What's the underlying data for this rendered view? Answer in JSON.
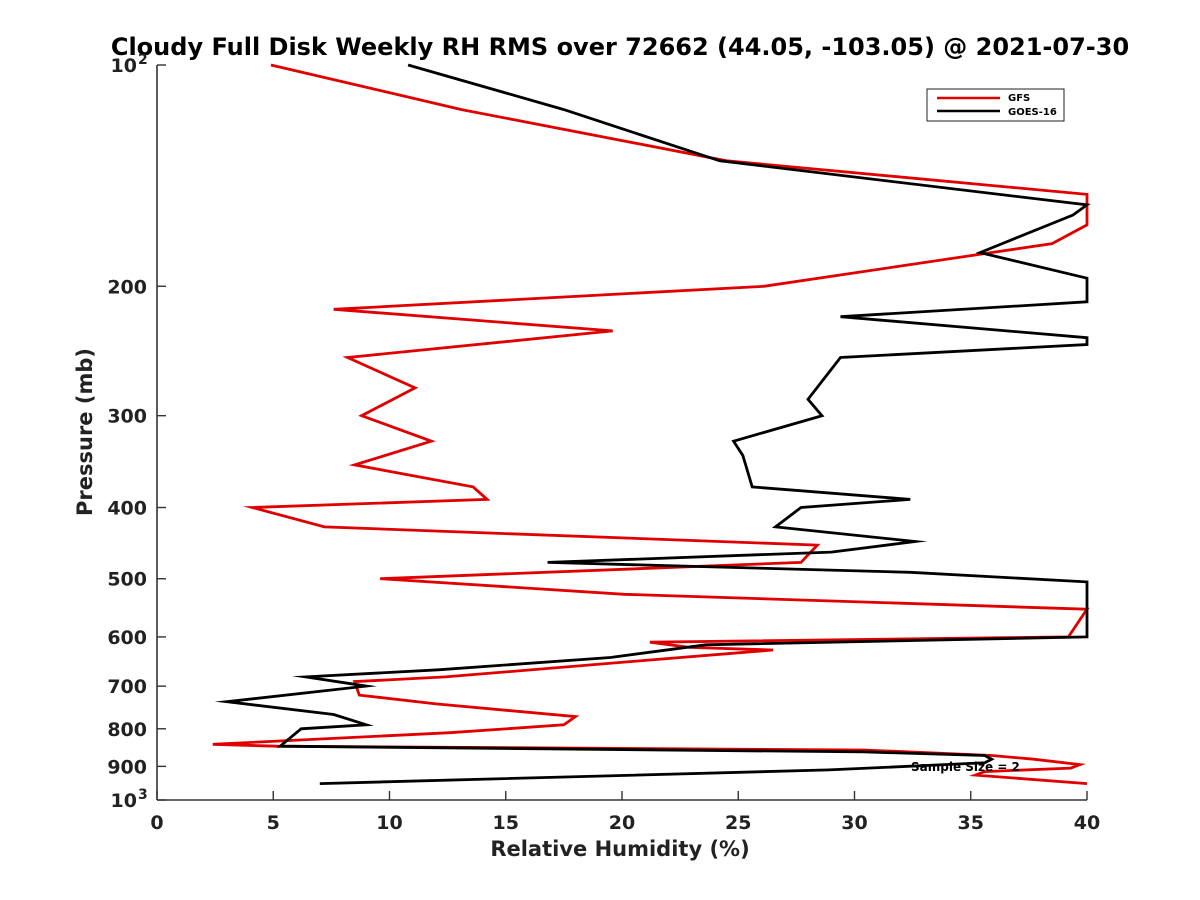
{
  "chart_data": {
    "type": "line",
    "title": "Cloudy Full Disk Weekly RH RMS over 72662 (44.05, -103.05) @ 2021-07-30",
    "xlabel": "Relative Humidity (%)",
    "ylabel": "Pressure (mb)",
    "xlim": [
      0,
      40
    ],
    "ylim": [
      100,
      1000
    ],
    "y_scale": "log",
    "y_reversed": true,
    "grid": false,
    "legend_placement": "top-right",
    "x_ticks": [
      "0",
      "5",
      "10",
      "15",
      "20",
      "25",
      "30",
      "35",
      "40"
    ],
    "y_ticks": [
      {
        "value": 100,
        "base": "10",
        "exp": "2"
      },
      {
        "value": 200,
        "label": "200"
      },
      {
        "value": 300,
        "label": "300"
      },
      {
        "value": 400,
        "label": "400"
      },
      {
        "value": 500,
        "label": "500"
      },
      {
        "value": 600,
        "label": "600"
      },
      {
        "value": 700,
        "label": "700"
      },
      {
        "value": 800,
        "label": "800"
      },
      {
        "value": 900,
        "label": "900"
      },
      {
        "value": 1000,
        "base": "10",
        "exp": "3"
      }
    ],
    "annotation": "Sample Size = 2",
    "series": [
      {
        "name": "GFS",
        "color": "#e00000",
        "points": [
          [
            4.9,
            100
          ],
          [
            13.1,
            115
          ],
          [
            24.5,
            135
          ],
          [
            40.0,
            150
          ],
          [
            40.0,
            165
          ],
          [
            38.5,
            175
          ],
          [
            26.1,
            200
          ],
          [
            7.6,
            215
          ],
          [
            19.6,
            230
          ],
          [
            8.2,
            250
          ],
          [
            11.1,
            275
          ],
          [
            8.8,
            300
          ],
          [
            11.8,
            325
          ],
          [
            8.5,
            350
          ],
          [
            13.6,
            375
          ],
          [
            14.2,
            390
          ],
          [
            4.1,
            400
          ],
          [
            7.2,
            425
          ],
          [
            28.4,
            450
          ],
          [
            27.7,
            475
          ],
          [
            9.6,
            500
          ],
          [
            20.1,
            525
          ],
          [
            40.0,
            550
          ],
          [
            39.2,
            600
          ],
          [
            21.2,
            610
          ],
          [
            22.9,
            620
          ],
          [
            26.5,
            625
          ],
          [
            21.2,
            645
          ],
          [
            12.4,
            680
          ],
          [
            8.5,
            690
          ],
          [
            8.7,
            720
          ],
          [
            12.0,
            740
          ],
          [
            18.0,
            770
          ],
          [
            17.5,
            790
          ],
          [
            12.6,
            810
          ],
          [
            2.4,
            840
          ],
          [
            5.1,
            845
          ],
          [
            30.4,
            855
          ],
          [
            35.9,
            870
          ],
          [
            37.7,
            880
          ],
          [
            39.7,
            895
          ],
          [
            39.3,
            905
          ],
          [
            35.6,
            915
          ],
          [
            35.2,
            925
          ],
          [
            40.0,
            950
          ]
        ]
      },
      {
        "name": "GOES-16",
        "color": "#000000",
        "points": [
          [
            10.8,
            100
          ],
          [
            17.5,
            115
          ],
          [
            24.2,
            135
          ],
          [
            40.0,
            155
          ],
          [
            39.4,
            160
          ],
          [
            35.4,
            180
          ],
          [
            40.0,
            195
          ],
          [
            40.0,
            210
          ],
          [
            29.4,
            220
          ],
          [
            40.0,
            235
          ],
          [
            40.0,
            240
          ],
          [
            29.4,
            250
          ],
          [
            28.0,
            285
          ],
          [
            28.6,
            300
          ],
          [
            24.8,
            325
          ],
          [
            25.2,
            340
          ],
          [
            25.6,
            375
          ],
          [
            32.4,
            390
          ],
          [
            27.7,
            400
          ],
          [
            26.6,
            425
          ],
          [
            32.6,
            445
          ],
          [
            29.0,
            460
          ],
          [
            16.8,
            475
          ],
          [
            32.4,
            490
          ],
          [
            40.0,
            505
          ],
          [
            40.0,
            600
          ],
          [
            23.6,
            615
          ],
          [
            19.5,
            640
          ],
          [
            12.1,
            665
          ],
          [
            6.4,
            680
          ],
          [
            9.0,
            700
          ],
          [
            3.0,
            735
          ],
          [
            7.6,
            765
          ],
          [
            9.0,
            790
          ],
          [
            6.2,
            800
          ],
          [
            5.3,
            845
          ],
          [
            30.4,
            860
          ],
          [
            35.6,
            870
          ],
          [
            35.9,
            880
          ],
          [
            35.6,
            890
          ],
          [
            28.9,
            910
          ],
          [
            7.0,
            950
          ]
        ]
      }
    ]
  }
}
